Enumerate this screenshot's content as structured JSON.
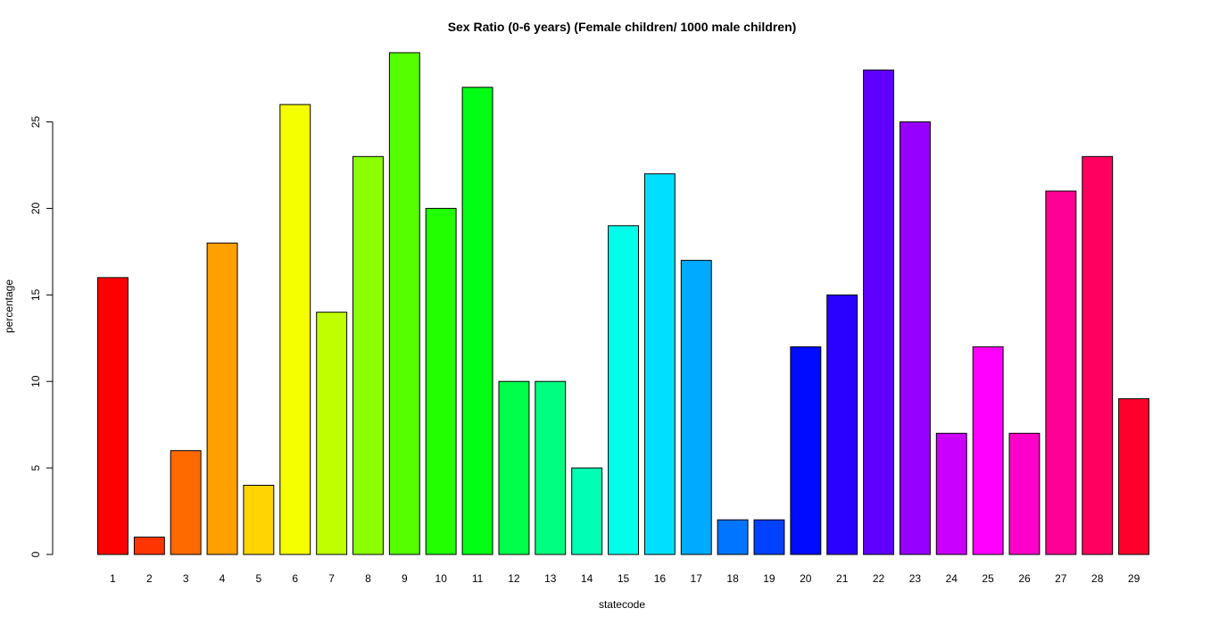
{
  "chart_data": {
    "type": "bar",
    "title": "Sex Ratio (0-6 years) (Female children/ 1000 male children)",
    "xlabel": "statecode",
    "ylabel": "percentage",
    "categories": [
      "1",
      "2",
      "3",
      "4",
      "5",
      "6",
      "7",
      "8",
      "9",
      "10",
      "11",
      "12",
      "13",
      "14",
      "15",
      "16",
      "17",
      "18",
      "19",
      "20",
      "21",
      "22",
      "23",
      "24",
      "25",
      "26",
      "27",
      "28",
      "29"
    ],
    "values": [
      16,
      1,
      6,
      18,
      4,
      26,
      14,
      23,
      29,
      20,
      27,
      10,
      10,
      5,
      19,
      22,
      17,
      2,
      2,
      12,
      15,
      28,
      25,
      7,
      12,
      7,
      21,
      23,
      9
    ],
    "colors": [
      "#FF0000",
      "#FF3500",
      "#FF6A00",
      "#FF9F00",
      "#FFD400",
      "#F5FF00",
      "#C0FF00",
      "#8BFF00",
      "#56FF00",
      "#21FF00",
      "#00FF15",
      "#00FF4A",
      "#00FF80",
      "#00FFB5",
      "#00FFEA",
      "#00DFFF",
      "#00AAFF",
      "#0075FF",
      "#0040FF",
      "#000BFF",
      "#2A00FF",
      "#5F00FF",
      "#9500FF",
      "#CA00FF",
      "#FF00FF",
      "#FF00CA",
      "#FF0095",
      "#FF005F",
      "#FF002A"
    ],
    "ylim": [
      0,
      29
    ],
    "yticks": [
      0,
      5,
      10,
      15,
      20,
      25
    ],
    "grid": false,
    "legend": "none"
  }
}
